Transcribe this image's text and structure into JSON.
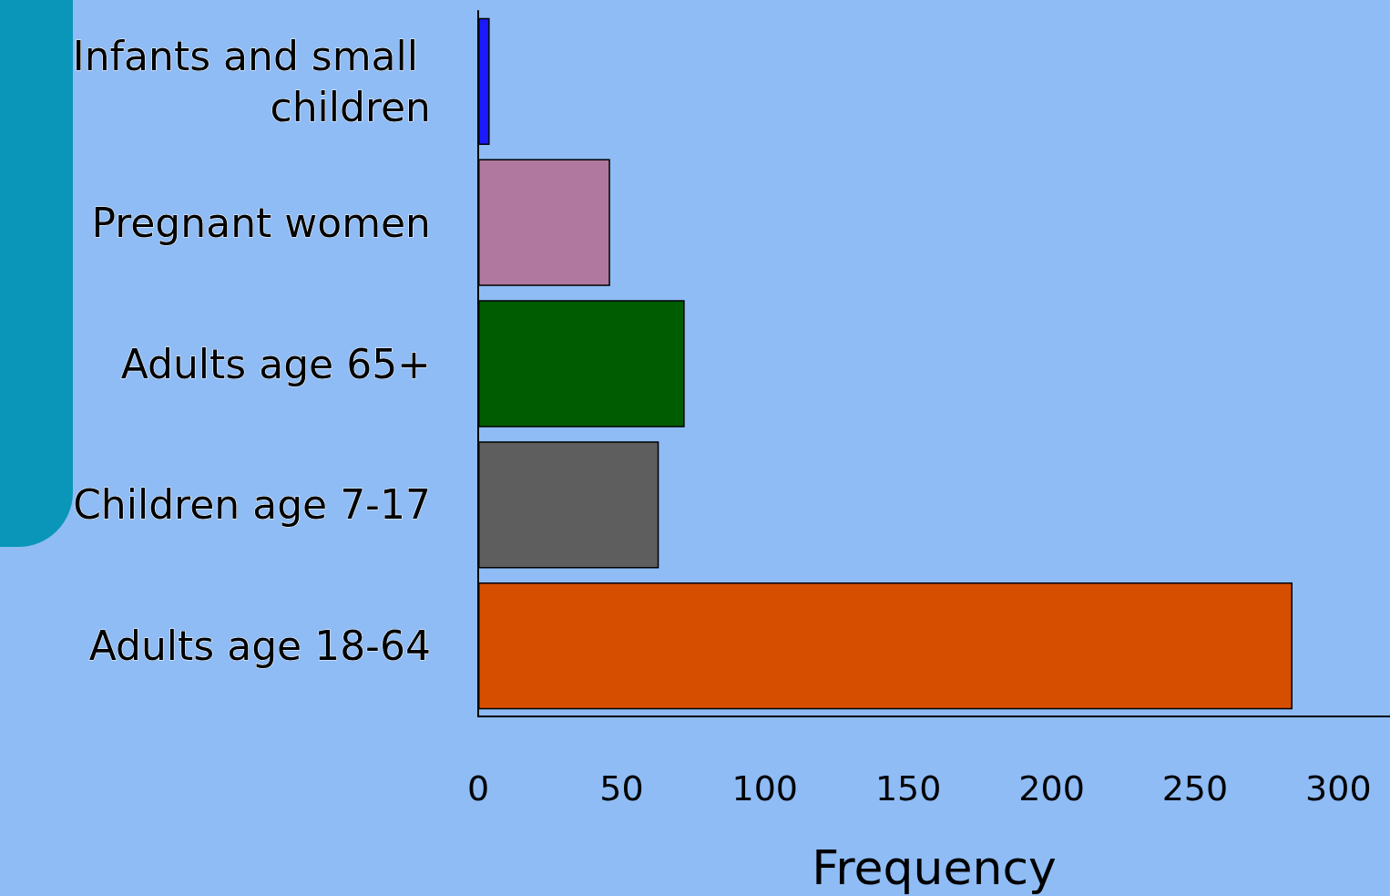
{
  "chart_data": {
    "type": "bar",
    "orientation": "horizontal",
    "xlabel": "Frequency",
    "categories": [
      "Infants and small children",
      "Pregnant women",
      "Adults age 65+",
      "Children age 7-17",
      "Adults age 18-64"
    ],
    "values": [
      4,
      46,
      72,
      63,
      284
    ],
    "colors": [
      "#1a1aff",
      "#b0789e",
      "#005c00",
      "#5e5e5e",
      "#d64f00"
    ],
    "xlim": [
      0,
      318
    ],
    "xticks": [
      0,
      50,
      100,
      150,
      200,
      250,
      300
    ]
  }
}
